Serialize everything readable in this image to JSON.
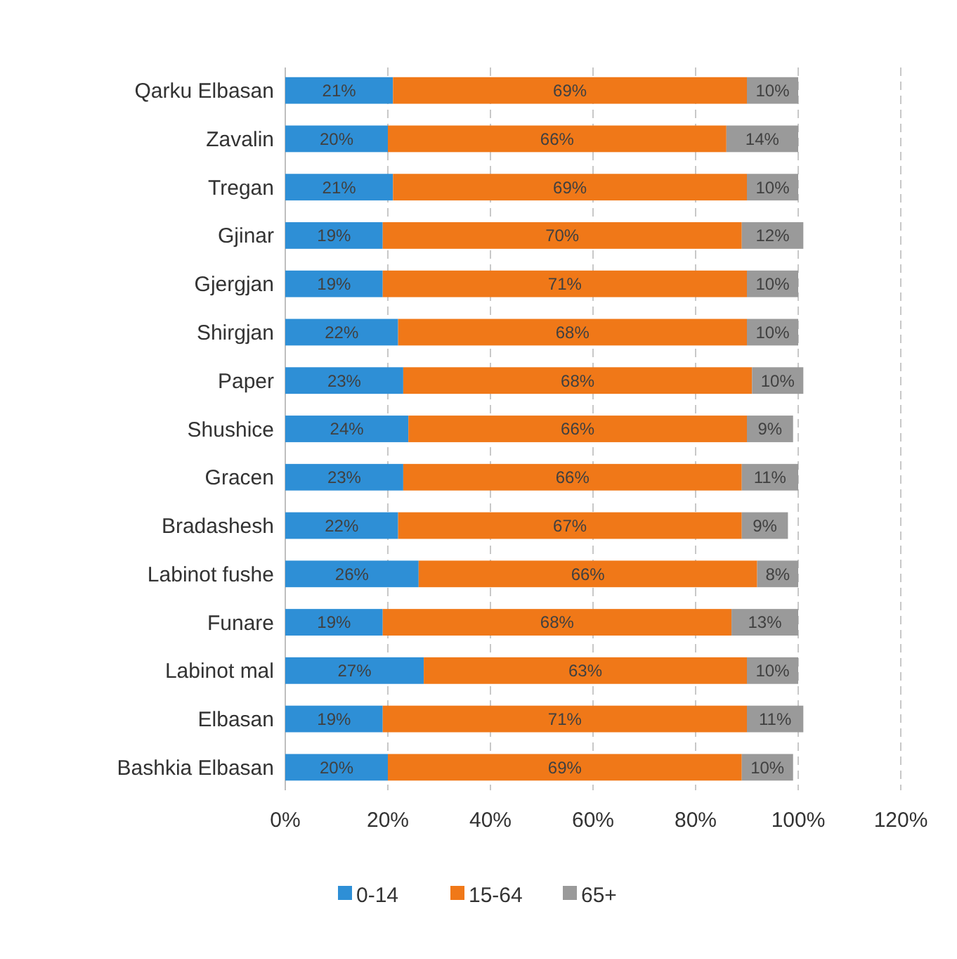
{
  "chart_data": {
    "type": "bar",
    "orientation": "horizontal",
    "stacked": true,
    "categories": [
      "Qarku Elbasan",
      "Zavalin",
      "Tregan",
      "Gjinar",
      "Gjergjan",
      "Shirgjan",
      "Paper",
      "Shushice",
      "Gracen",
      "Bradashesh",
      "Labinot fushe",
      "Funare",
      "Labinot mal",
      "Elbasan",
      "Bashkia Elbasan"
    ],
    "series": [
      {
        "name": "0-14",
        "color": "#2e8fd6",
        "values": [
          21,
          20,
          21,
          19,
          19,
          22,
          23,
          24,
          23,
          22,
          26,
          19,
          27,
          19,
          20
        ],
        "value_labels": [
          "21%",
          "20%",
          "21%",
          "19%",
          "19%",
          "22%",
          "23%",
          "24%",
          "23%",
          "22%",
          "26%",
          "19%",
          "27%",
          "19%",
          "20%"
        ]
      },
      {
        "name": "15-64",
        "color": "#f07818",
        "values": [
          69,
          66,
          69,
          70,
          71,
          68,
          68,
          66,
          66,
          67,
          66,
          68,
          63,
          71,
          69
        ],
        "value_labels": [
          "69%",
          "66%",
          "69%",
          "70%",
          "71%",
          "68%",
          "68%",
          "66%",
          "66%",
          "67%",
          "66%",
          "68%",
          "63%",
          "71%",
          "69%"
        ]
      },
      {
        "name": "65+",
        "color": "#9a9a9a",
        "values": [
          10,
          14,
          10,
          12,
          10,
          10,
          10,
          9,
          11,
          9,
          8,
          13,
          10,
          11,
          10
        ],
        "value_labels": [
          "10%",
          "14%",
          "10%",
          "12%",
          "10%",
          "10%",
          "10%",
          "9%",
          "11%",
          "9%",
          "8%",
          "13%",
          "10%",
          "11%",
          "10%"
        ]
      }
    ],
    "xlim": [
      0,
      120
    ],
    "xticks": [
      {
        "value": 0,
        "label": "0%"
      },
      {
        "value": 20,
        "label": "20%"
      },
      {
        "value": 40,
        "label": "40%"
      },
      {
        "value": 60,
        "label": "60%"
      },
      {
        "value": 80,
        "label": "80%"
      },
      {
        "value": 100,
        "label": "100%"
      },
      {
        "value": 120,
        "label": "120%"
      }
    ],
    "grid": "x",
    "legend": "bottom"
  }
}
